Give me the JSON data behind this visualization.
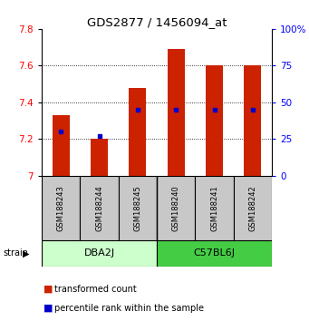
{
  "title": "GDS2877 / 1456094_at",
  "samples": [
    "GSM188243",
    "GSM188244",
    "GSM188245",
    "GSM188240",
    "GSM188241",
    "GSM188242"
  ],
  "group_labels": [
    "DBA2J",
    "C57BL6J"
  ],
  "red_values": [
    7.33,
    7.2,
    7.48,
    7.69,
    7.6,
    7.6
  ],
  "blue_percentiles": [
    30,
    27,
    45,
    45,
    45,
    45
  ],
  "ylim_left": [
    7.0,
    7.8
  ],
  "ylim_right": [
    0,
    100
  ],
  "yticks_left": [
    7.0,
    7.2,
    7.4,
    7.6,
    7.8
  ],
  "yticks_right": [
    0,
    25,
    50,
    75,
    100
  ],
  "ytick_labels_right": [
    "0",
    "25",
    "50",
    "75",
    "100%"
  ],
  "bar_color": "#CC2200",
  "dot_color": "#0000CC",
  "bar_width": 0.45,
  "bg_color": "#FFFFFF",
  "sample_box_color": "#C8C8C8",
  "group1_color": "#CCFFCC",
  "group2_color": "#44CC44",
  "legend_red": "transformed count",
  "legend_blue": "percentile rank within the sample",
  "strain_label": "strain",
  "grid_yticks": [
    7.2,
    7.4,
    7.6
  ]
}
